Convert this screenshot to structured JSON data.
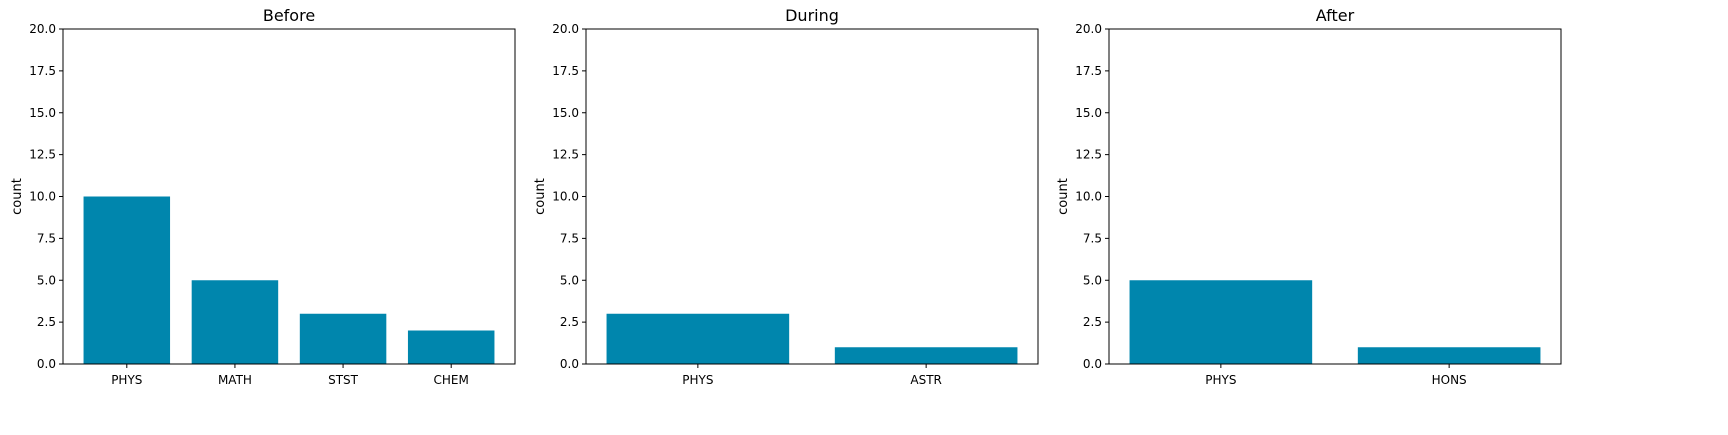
{
  "chart_data": [
    {
      "type": "bar",
      "title": "Before",
      "xlabel": "",
      "ylabel": "count",
      "ylim": [
        0,
        20
      ],
      "yticks": [
        "0.0",
        "2.5",
        "5.0",
        "7.5",
        "10.0",
        "12.5",
        "15.0",
        "17.5",
        "20.0"
      ],
      "categories": [
        "PHYS",
        "MATH",
        "STST",
        "CHEM"
      ],
      "values": [
        10,
        5,
        3,
        2
      ],
      "color": "#0086ad",
      "grid": false
    },
    {
      "type": "bar",
      "title": "During",
      "xlabel": "",
      "ylabel": "count",
      "ylim": [
        0,
        20
      ],
      "yticks": [
        "0.0",
        "2.5",
        "5.0",
        "7.5",
        "10.0",
        "12.5",
        "15.0",
        "17.5",
        "20.0"
      ],
      "categories": [
        "PHYS",
        "ASTR"
      ],
      "values": [
        3,
        1
      ],
      "color": "#0086ad",
      "grid": false
    },
    {
      "type": "bar",
      "title": "After",
      "xlabel": "",
      "ylabel": "count",
      "ylim": [
        0,
        20
      ],
      "yticks": [
        "0.0",
        "2.5",
        "5.0",
        "7.5",
        "10.0",
        "12.5",
        "15.0",
        "17.5",
        "20.0"
      ],
      "categories": [
        "PHYS",
        "HONS"
      ],
      "values": [
        5,
        1
      ],
      "color": "#0086ad",
      "grid": false
    }
  ]
}
